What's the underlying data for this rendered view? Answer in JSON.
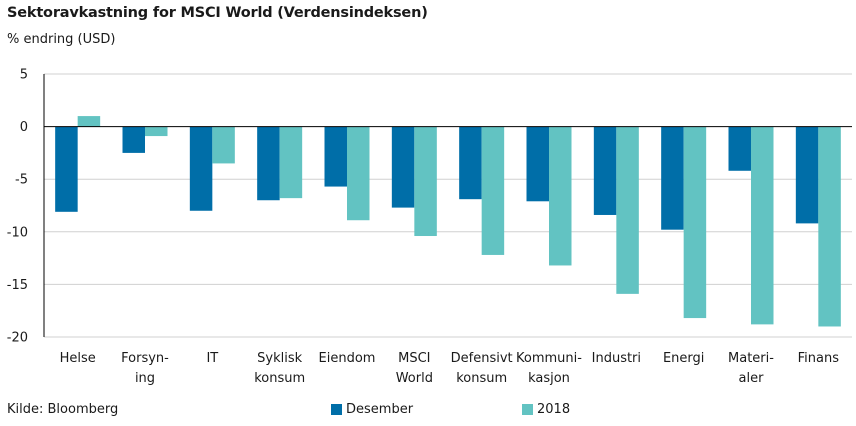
{
  "title": "Sektoravkastning for MSCI World (Verdensindeksen)",
  "subtitle": "% endring (USD)",
  "source": "Kilde: Bloomberg",
  "colors": {
    "desember": "#006ea8",
    "y2018": "#62c3c2",
    "axis": "#000000",
    "grid": "#d0d0d0"
  },
  "chart_data": {
    "type": "bar",
    "title": "Sektoravkastning for MSCI World (Verdensindeksen)",
    "ylabel": "% endring (USD)",
    "ylim": [
      -20,
      5
    ],
    "yticks": [
      5,
      0,
      -5,
      -10,
      -15,
      -20
    ],
    "grid": true,
    "legend": "bottom",
    "categories": [
      [
        "Helse"
      ],
      [
        "Forsyn-",
        "ing"
      ],
      [
        "IT"
      ],
      [
        "Syklisk",
        "konsum"
      ],
      [
        "Eiendom"
      ],
      [
        "MSCI",
        "World"
      ],
      [
        "Defensivt",
        "konsum"
      ],
      [
        "Kommuni-",
        "kasjon"
      ],
      [
        "Industri"
      ],
      [
        "Energi"
      ],
      [
        "Materi-",
        "aler"
      ],
      [
        "Finans"
      ]
    ],
    "series": [
      {
        "name": "Desember",
        "values": [
          -8.1,
          -2.5,
          -8.0,
          -7.0,
          -5.7,
          -7.7,
          -6.9,
          -7.1,
          -8.4,
          -9.8,
          -4.2,
          -9.2
        ]
      },
      {
        "name": "2018",
        "values": [
          1.0,
          -0.9,
          -3.5,
          -6.8,
          -8.9,
          -10.4,
          -12.2,
          -13.2,
          -15.9,
          -18.2,
          -18.8,
          -19.0
        ]
      }
    ]
  }
}
